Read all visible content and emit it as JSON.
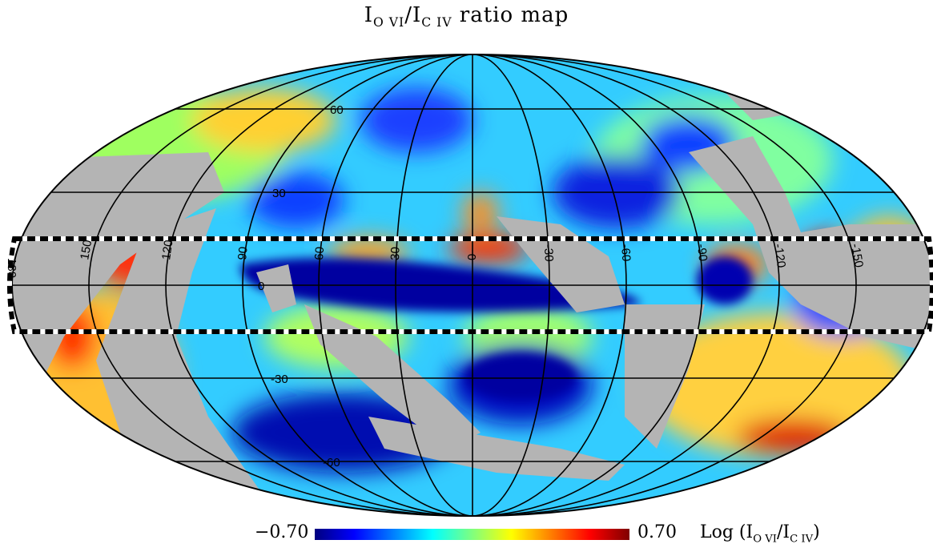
{
  "title": {
    "main": "I",
    "sub1": "O VI",
    "slash": "/I",
    "sub2": "C IV",
    "suffix": " ratio map"
  },
  "map": {
    "projection": "mollweide",
    "longitude_labels": [
      "180",
      "150",
      "120",
      "90",
      "60",
      "30",
      "0",
      "-30",
      "-60",
      "-90",
      "-120",
      "-150"
    ],
    "latitude_labels": [
      "60",
      "30",
      "0",
      "-30",
      "-60"
    ],
    "mask_color": "#b4b4b4",
    "highlight_band": "dashed black-white band at |b| < 30"
  },
  "colorbar": {
    "min_label": "−0.70",
    "max_label": "0.70",
    "unit_prefix": "Log (I",
    "unit_sub1": "O VI",
    "unit_mid": "/I",
    "unit_sub2": "C IV",
    "unit_suffix": ")",
    "colormap": "jet"
  }
}
